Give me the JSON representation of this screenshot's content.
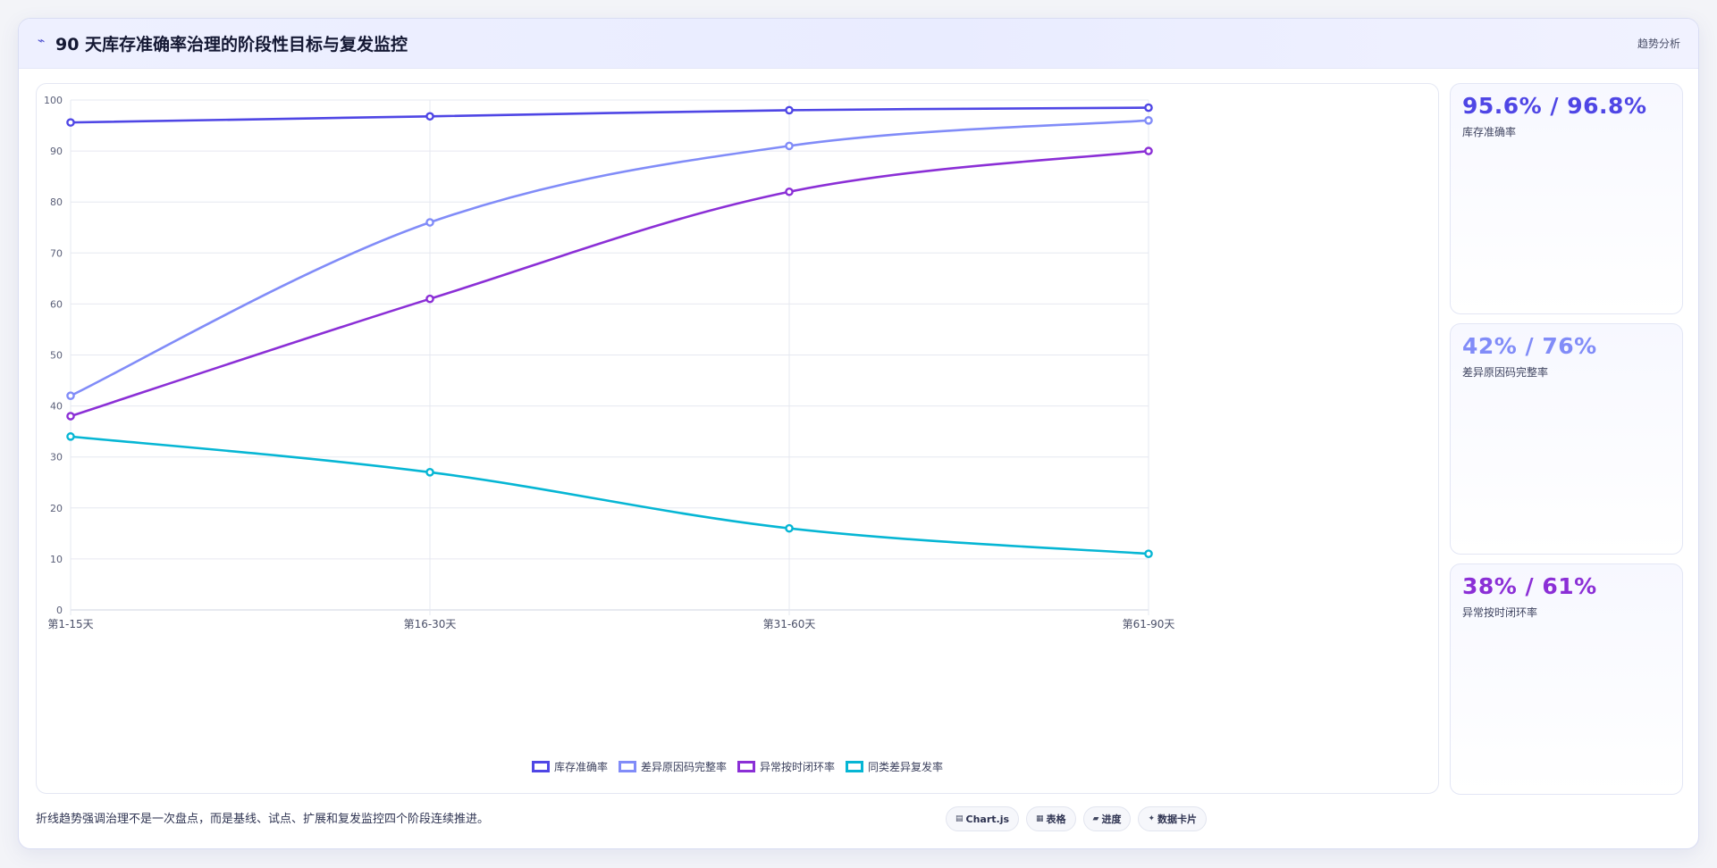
{
  "header": {
    "icon": "bolt-icon",
    "title": "90 天库存准确率治理的阶段性目标与复发监控",
    "badge": "趋势分析"
  },
  "chart_data": {
    "type": "line",
    "categories": [
      "第1-15天",
      "第16-30天",
      "第31-60天",
      "第61-90天"
    ],
    "ylim": [
      0,
      100
    ],
    "yticks": [
      0,
      10,
      20,
      30,
      40,
      50,
      60,
      70,
      80,
      90,
      100
    ],
    "grid": true,
    "legend_position": "bottom",
    "series": [
      {
        "name": "库存准确率",
        "values": [
          95.6,
          96.8,
          98.0,
          98.5
        ],
        "color": "#4f46e5"
      },
      {
        "name": "差异原因码完整率",
        "values": [
          42,
          76,
          91,
          96
        ],
        "color": "#818cf8"
      },
      {
        "name": "异常按时闭环率",
        "values": [
          38,
          61,
          82,
          90
        ],
        "color": "#8b2fd6"
      },
      {
        "name": "同类差异复发率",
        "values": [
          34,
          27,
          16,
          11
        ],
        "color": "#06b6d4"
      }
    ]
  },
  "kpis": [
    {
      "value": "95.6% / 96.8%",
      "label": "库存准确率",
      "color": "#4f46e5"
    },
    {
      "value": "42% / 76%",
      "label": "差异原因码完整率",
      "color": "#818cf8"
    },
    {
      "value": "38% / 61%",
      "label": "异常按时闭环率",
      "color": "#8b2fd6"
    }
  ],
  "footer": {
    "note": "折线趋势强调治理不是一次盘点，而是基线、试点、扩展和复发监控四个阶段连续推进。"
  },
  "toolbar": [
    {
      "icon": "chart-icon",
      "glyph": "▤",
      "label": "Chart.js"
    },
    {
      "icon": "table-icon",
      "glyph": "▦",
      "label": "表格"
    },
    {
      "icon": "progress-icon",
      "glyph": "▰",
      "label": "进度"
    },
    {
      "icon": "sparkle-icon",
      "glyph": "✦",
      "label": "数据卡片"
    }
  ]
}
